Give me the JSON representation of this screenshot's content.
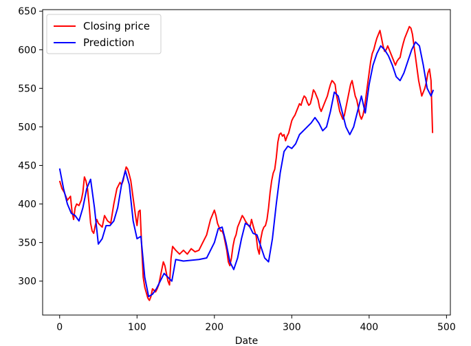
{
  "chart_data": {
    "type": "line",
    "title": "",
    "xlabel": "Date",
    "ylabel": "",
    "xlim": [
      -22,
      505
    ],
    "ylim": [
      256,
      652
    ],
    "xticks": [
      0,
      100,
      200,
      300,
      400,
      500
    ],
    "yticks": [
      300,
      350,
      400,
      450,
      500,
      550,
      600,
      650
    ],
    "grid": false,
    "legend_position": "top-left",
    "series": [
      {
        "name": "Closing price",
        "color": "#ff0000",
        "x": [
          0,
          3,
          6,
          10,
          14,
          16,
          18,
          20,
          22,
          25,
          28,
          30,
          32,
          34,
          36,
          38,
          40,
          42,
          44,
          46,
          48,
          50,
          55,
          58,
          62,
          66,
          70,
          74,
          78,
          80,
          82,
          84,
          86,
          88,
          90,
          92,
          94,
          96,
          98,
          100,
          102,
          104,
          106,
          108,
          110,
          112,
          114,
          116,
          118,
          120,
          122,
          124,
          126,
          128,
          130,
          132,
          134,
          136,
          138,
          140,
          142,
          144,
          146,
          150,
          155,
          160,
          165,
          170,
          175,
          180,
          185,
          190,
          195,
          200,
          202,
          204,
          206,
          208,
          210,
          212,
          214,
          216,
          218,
          220,
          222,
          224,
          226,
          228,
          230,
          232,
          234,
          236,
          238,
          240,
          242,
          244,
          246,
          248,
          250,
          252,
          254,
          256,
          258,
          260,
          262,
          264,
          266,
          268,
          270,
          272,
          274,
          276,
          278,
          280,
          282,
          284,
          286,
          288,
          290,
          292,
          294,
          296,
          298,
          300,
          302,
          304,
          306,
          308,
          310,
          312,
          314,
          316,
          318,
          320,
          322,
          324,
          326,
          328,
          330,
          332,
          334,
          336,
          338,
          340,
          342,
          344,
          346,
          348,
          350,
          352,
          354,
          356,
          358,
          360,
          362,
          364,
          366,
          368,
          370,
          372,
          374,
          376,
          378,
          380,
          382,
          384,
          386,
          388,
          390,
          392,
          394,
          396,
          398,
          400,
          402,
          404,
          406,
          408,
          410,
          412,
          414,
          416,
          418,
          420,
          422,
          424,
          426,
          428,
          430,
          432,
          434,
          436,
          438,
          440,
          442,
          444,
          446,
          448,
          450,
          452,
          454,
          456,
          458,
          460,
          462,
          464,
          466,
          468,
          470,
          472,
          474,
          476,
          478,
          480,
          482
        ],
        "values": [
          430,
          420,
          415,
          405,
          410,
          390,
          380,
          395,
          400,
          398,
          405,
          415,
          435,
          430,
          420,
          400,
          375,
          365,
          362,
          372,
          380,
          375,
          370,
          385,
          378,
          375,
          400,
          420,
          428,
          425,
          430,
          440,
          448,
          445,
          438,
          430,
          415,
          400,
          385,
          372,
          390,
          392,
          345,
          305,
          292,
          285,
          278,
          275,
          280,
          290,
          288,
          286,
          290,
          295,
          305,
          315,
          325,
          320,
          310,
          300,
          295,
          330,
          345,
          340,
          335,
          340,
          335,
          342,
          338,
          340,
          350,
          360,
          380,
          392,
          385,
          375,
          370,
          365,
          365,
          360,
          350,
          340,
          325,
          320,
          330,
          345,
          355,
          360,
          370,
          375,
          380,
          385,
          382,
          378,
          375,
          372,
          370,
          380,
          372,
          365,
          358,
          342,
          335,
          355,
          365,
          370,
          372,
          380,
          395,
          415,
          430,
          440,
          445,
          460,
          480,
          490,
          492,
          488,
          490,
          482,
          488,
          492,
          500,
          508,
          512,
          515,
          520,
          525,
          530,
          528,
          535,
          540,
          538,
          532,
          528,
          530,
          538,
          548,
          545,
          540,
          535,
          525,
          520,
          525,
          530,
          535,
          540,
          548,
          555,
          560,
          558,
          555,
          540,
          530,
          520,
          515,
          510,
          515,
          525,
          535,
          545,
          555,
          560,
          550,
          540,
          535,
          525,
          515,
          510,
          515,
          525,
          540,
          555,
          570,
          585,
          595,
          600,
          608,
          615,
          620,
          625,
          615,
          605,
          598,
          600,
          605,
          600,
          595,
          590,
          585,
          580,
          585,
          588,
          590,
          600,
          608,
          615,
          620,
          625,
          630,
          628,
          620,
          605,
          590,
          575,
          560,
          550,
          540,
          545,
          550,
          558,
          570,
          575,
          560,
          492
        ]
      },
      {
        "name": "Prediction",
        "color": "#0000ff",
        "x": [
          0,
          5,
          10,
          15,
          20,
          25,
          30,
          35,
          40,
          45,
          50,
          55,
          60,
          65,
          70,
          75,
          80,
          85,
          90,
          95,
          100,
          105,
          110,
          115,
          120,
          125,
          130,
          135,
          140,
          145,
          150,
          160,
          170,
          180,
          190,
          200,
          205,
          210,
          215,
          220,
          225,
          230,
          235,
          240,
          245,
          250,
          255,
          260,
          265,
          270,
          275,
          280,
          285,
          290,
          295,
          300,
          305,
          310,
          315,
          320,
          325,
          330,
          335,
          340,
          345,
          350,
          355,
          360,
          365,
          370,
          375,
          380,
          385,
          390,
          395,
          400,
          405,
          410,
          415,
          420,
          425,
          430,
          435,
          440,
          445,
          450,
          455,
          460,
          465,
          470,
          475,
          480,
          483
        ],
        "values": [
          446,
          420,
          400,
          388,
          385,
          378,
          395,
          420,
          432,
          395,
          348,
          355,
          372,
          372,
          378,
          395,
          425,
          443,
          425,
          378,
          355,
          358,
          305,
          280,
          283,
          290,
          300,
          310,
          305,
          300,
          328,
          326,
          327,
          328,
          330,
          350,
          368,
          370,
          350,
          325,
          315,
          330,
          355,
          375,
          372,
          362,
          360,
          345,
          330,
          325,
          355,
          400,
          440,
          468,
          475,
          472,
          478,
          490,
          495,
          500,
          505,
          512,
          505,
          495,
          500,
          520,
          545,
          540,
          520,
          500,
          490,
          500,
          520,
          540,
          518,
          555,
          580,
          595,
          605,
          600,
          592,
          580,
          565,
          560,
          570,
          585,
          600,
          610,
          605,
          580,
          550,
          540,
          548
        ]
      }
    ]
  }
}
